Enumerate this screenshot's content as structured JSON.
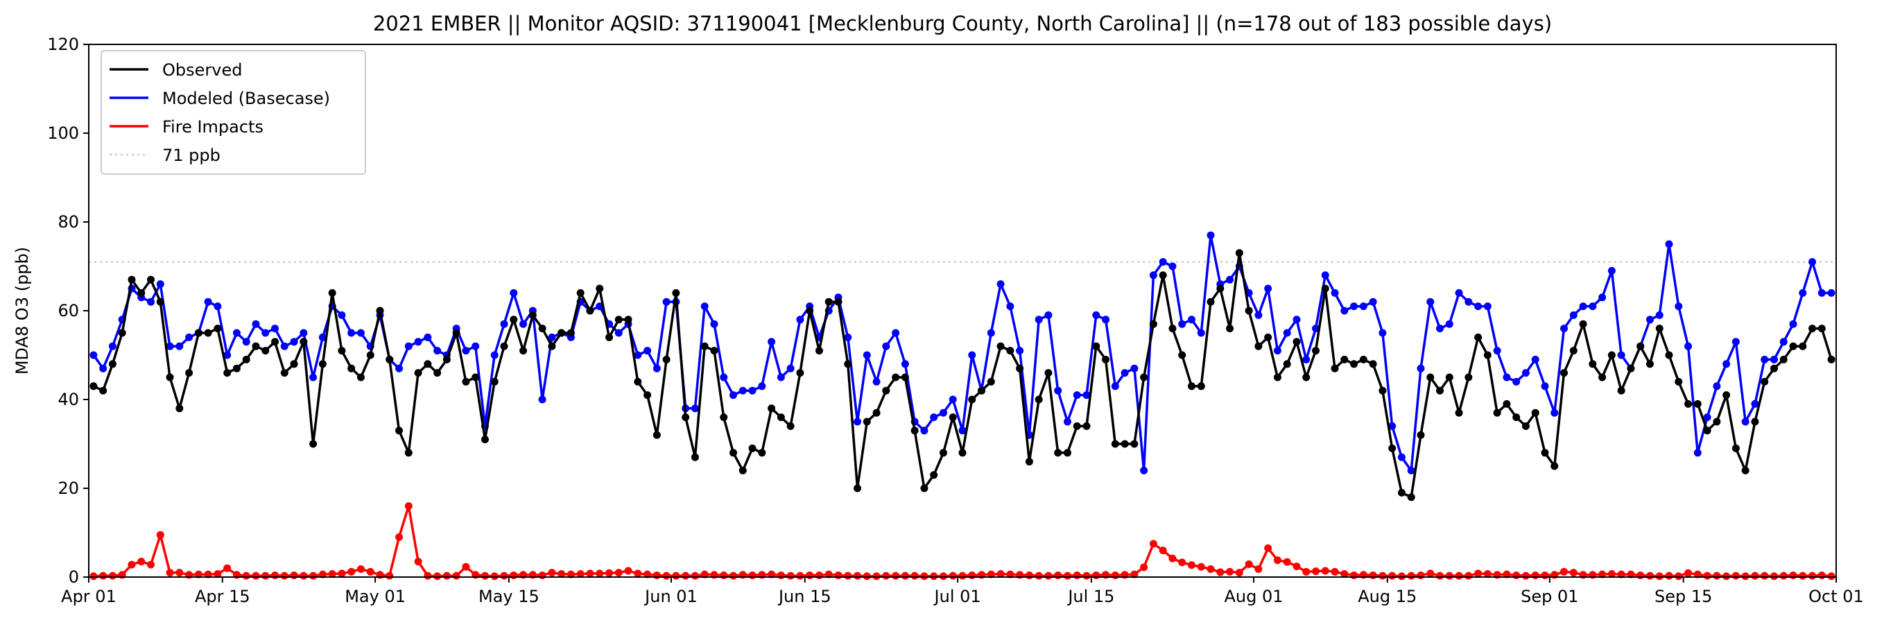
{
  "chart_data": {
    "type": "line",
    "title": "2021 EMBER || Monitor AQSID: 371190041 [Mecklenburg County, North Carolina] || (n=178 out of 183 possible days)",
    "xlabel": "",
    "ylabel": "MDA8 O3 (ppb)",
    "ylim": [
      0,
      120
    ],
    "yticks": [
      0,
      20,
      40,
      60,
      80,
      100,
      120
    ],
    "x_start": "2021-04-01",
    "x_end": "2021-10-01",
    "xticks": [
      {
        "label": "Apr 01",
        "day": 0
      },
      {
        "label": "Apr 15",
        "day": 14
      },
      {
        "label": "May 01",
        "day": 30
      },
      {
        "label": "May 15",
        "day": 44
      },
      {
        "label": "Jun 01",
        "day": 61
      },
      {
        "label": "Jun 15",
        "day": 75
      },
      {
        "label": "Jul 01",
        "day": 91
      },
      {
        "label": "Jul 15",
        "day": 105
      },
      {
        "label": "Aug 01",
        "day": 122
      },
      {
        "label": "Aug 15",
        "day": 136
      },
      {
        "label": "Sep 01",
        "day": 153
      },
      {
        "label": "Sep 15",
        "day": 167
      },
      {
        "label": "Oct 01",
        "day": 183
      }
    ],
    "grid": false,
    "legend_position": "top-left",
    "threshold": {
      "label": "71 ppb",
      "value": 71,
      "color": "#d3d3d3"
    },
    "series": [
      {
        "name": "Observed",
        "color": "#000000",
        "values": [
          43,
          42,
          48,
          55,
          67,
          64,
          67,
          62,
          45,
          38,
          46,
          55,
          55,
          56,
          46,
          47,
          49,
          52,
          51,
          53,
          46,
          48,
          53,
          30,
          48,
          64,
          51,
          47,
          45,
          50,
          60,
          49,
          33,
          28,
          46,
          48,
          46,
          49,
          55,
          44,
          45,
          31,
          44,
          52,
          58,
          51,
          59,
          56,
          52,
          55,
          55,
          64,
          60,
          65,
          54,
          58,
          58,
          44,
          41,
          32,
          49,
          64,
          36,
          27,
          52,
          51,
          36,
          28,
          24,
          29,
          28,
          38,
          36,
          34,
          46,
          60,
          51,
          62,
          62,
          48,
          20,
          35,
          37,
          42,
          45,
          45,
          33,
          20,
          23,
          28,
          36,
          28,
          40,
          42,
          44,
          52,
          51,
          47,
          26,
          40,
          46,
          28,
          28,
          34,
          34,
          52,
          49,
          30,
          30,
          30,
          45,
          57,
          68,
          56,
          50,
          43,
          43,
          62,
          65,
          56,
          73,
          60,
          52,
          54,
          45,
          48,
          53,
          45,
          51,
          65,
          47,
          49,
          48,
          49,
          48,
          42,
          29,
          19,
          18,
          32,
          45,
          42,
          45,
          37,
          45,
          54,
          50,
          37,
          39,
          36,
          34,
          37,
          28,
          25,
          46,
          51,
          57,
          48,
          45,
          50,
          42,
          47,
          52,
          48,
          56,
          50,
          44,
          39,
          39,
          33,
          35,
          41,
          29,
          24,
          35,
          44,
          47,
          49,
          52,
          52,
          56,
          56,
          49
        ]
      },
      {
        "name": "Modeled (Basecase)",
        "color": "#0000ff",
        "values": [
          50,
          47,
          52,
          58,
          65,
          63,
          62,
          66,
          52,
          52,
          54,
          55,
          62,
          61,
          50,
          55,
          53,
          57,
          55,
          56,
          52,
          53,
          55,
          45,
          54,
          61,
          59,
          55,
          55,
          52,
          59,
          49,
          47,
          52,
          53,
          54,
          51,
          50,
          56,
          51,
          52,
          34,
          50,
          57,
          64,
          57,
          60,
          40,
          54,
          55,
          54,
          62,
          60,
          61,
          57,
          55,
          57,
          50,
          51,
          47,
          62,
          62,
          38,
          38,
          61,
          57,
          45,
          41,
          42,
          42,
          43,
          53,
          45,
          47,
          58,
          61,
          54,
          60,
          63,
          54,
          35,
          50,
          44,
          52,
          55,
          48,
          35,
          33,
          36,
          37,
          40,
          33,
          50,
          42,
          55,
          66,
          61,
          51,
          32,
          58,
          59,
          42,
          35,
          41,
          41,
          59,
          58,
          43,
          46,
          47,
          24,
          68,
          71,
          70,
          57,
          58,
          55,
          77,
          66,
          67,
          70,
          64,
          59,
          65,
          51,
          55,
          58,
          49,
          56,
          68,
          64,
          60,
          61,
          61,
          62,
          55,
          34,
          27,
          24,
          47,
          62,
          56,
          57,
          64,
          62,
          61,
          61,
          51,
          45,
          44,
          46,
          49,
          43,
          37,
          56,
          59,
          61,
          61,
          63,
          69,
          50,
          47,
          52,
          58,
          59,
          75,
          61,
          52,
          28,
          36,
          43,
          48,
          53,
          35,
          39,
          49,
          49,
          53,
          57,
          64,
          71,
          64,
          64
        ]
      },
      {
        "name": "Fire Impacts",
        "color": "#ff0000",
        "values": [
          0.2,
          0.3,
          0.3,
          0.5,
          2.8,
          3.5,
          2.8,
          9.5,
          1,
          1,
          0.5,
          0.6,
          0.6,
          0.7,
          2,
          0.5,
          0.3,
          0.3,
          0.3,
          0.4,
          0.3,
          0.4,
          0.3,
          0.3,
          0.6,
          0.7,
          0.8,
          1.2,
          1.8,
          1.2,
          0.5,
          0.3,
          9,
          16,
          3.5,
          0.3,
          0.2,
          0.3,
          0.3,
          2.3,
          0.5,
          0.3,
          0.2,
          0.3,
          0.4,
          0.5,
          0.5,
          0.4,
          1,
          0.7,
          0.6,
          0.7,
          0.8,
          0.8,
          0.9,
          1,
          1.4,
          0.8,
          0.6,
          0.4,
          0.3,
          0.3,
          0.3,
          0.3,
          0.6,
          0.5,
          0.4,
          0.3,
          0.5,
          0.4,
          0.5,
          0.6,
          0.4,
          0.3,
          0.3,
          0.4,
          0.4,
          0.6,
          0.4,
          0.3,
          0.3,
          0.2,
          0.2,
          0.3,
          0.3,
          0.3,
          0.3,
          0.2,
          0.2,
          0.2,
          0.3,
          0.3,
          0.4,
          0.5,
          0.6,
          0.7,
          0.6,
          0.5,
          0.4,
          0.3,
          0.3,
          0.4,
          0.3,
          0.4,
          0.3,
          0.4,
          0.5,
          0.4,
          0.5,
          0.6,
          2.2,
          7.5,
          6,
          4.2,
          3.3,
          2.7,
          2.3,
          1.8,
          1.1,
          1.2,
          1,
          2.9,
          1.8,
          6.5,
          3.8,
          3.4,
          2.4,
          1.2,
          1.3,
          1.4,
          1.2,
          0.7,
          0.4,
          0.5,
          0.4,
          0.3,
          0.3,
          0.2,
          0.3,
          0.4,
          0.8,
          0.3,
          0.3,
          0.3,
          0.3,
          0.8,
          0.7,
          0.5,
          0.6,
          0.4,
          0.3,
          0.4,
          0.4,
          0.5,
          1.2,
          1,
          0.5,
          0.5,
          0.6,
          0.7,
          0.6,
          0.6,
          0.4,
          0.3,
          0.2,
          0.3,
          0.2,
          0.9,
          0.6,
          0.3,
          0.3,
          0.2,
          0.3,
          0.2,
          0.3,
          0.3,
          0.2,
          0.3,
          0.4,
          0.3,
          0.3,
          0.4,
          0.2
        ]
      }
    ]
  }
}
